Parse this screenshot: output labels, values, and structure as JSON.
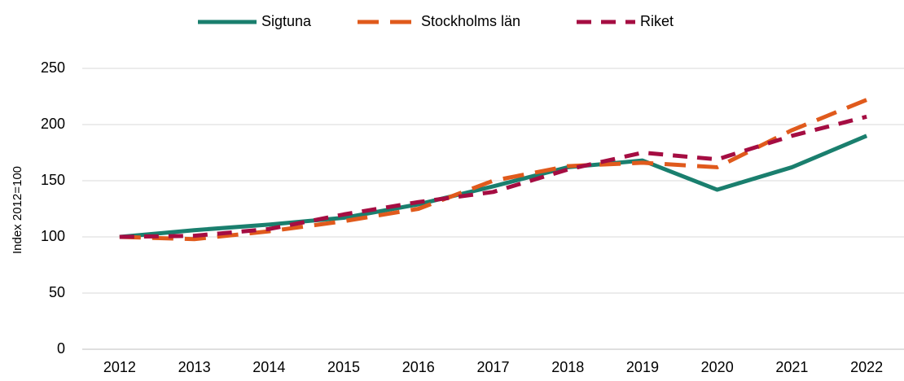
{
  "chart_data": {
    "type": "line",
    "y_label": "Index 2012=100",
    "categories": [
      "2012",
      "2013",
      "2014",
      "2015",
      "2016",
      "2017",
      "2018",
      "2019",
      "2020",
      "2021",
      "2022"
    ],
    "series": [
      {
        "name": "Sigtuna",
        "color": "#1a7f6e",
        "dash": "solid",
        "values": [
          100,
          106,
          111,
          117,
          129,
          145,
          162,
          168,
          142,
          162,
          190
        ]
      },
      {
        "name": "Stockholms län",
        "color": "#e05a1c",
        "dash": "long-dash",
        "values": [
          100,
          98,
          105,
          114,
          125,
          150,
          163,
          166,
          162,
          195,
          222
        ]
      },
      {
        "name": "Riket",
        "color": "#a50d42",
        "dash": "dash",
        "values": [
          100,
          101,
          107,
          120,
          131,
          140,
          160,
          175,
          169,
          190,
          207
        ]
      }
    ],
    "ylim": [
      0,
      250
    ],
    "yticks": [
      0,
      50,
      100,
      150,
      200,
      250
    ],
    "grid": true,
    "legend": "top"
  }
}
